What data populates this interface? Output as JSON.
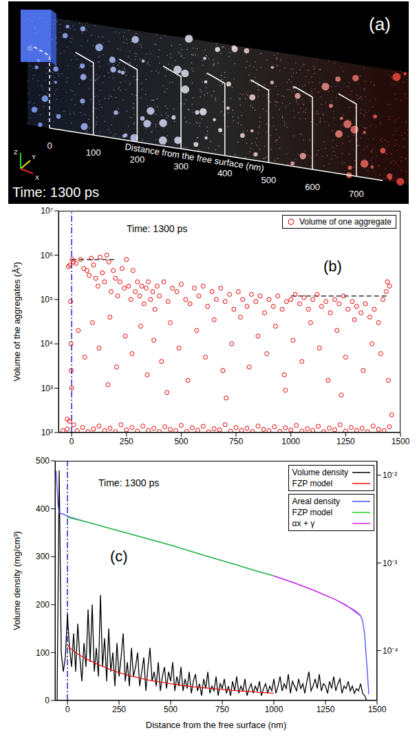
{
  "panel_a": {
    "panel_label": "(a)",
    "annotation": "Time: 1300 ps",
    "xlabel": "Distance from the free surface (nm)",
    "xlim": [
      0,
      760
    ],
    "xticks": [
      0,
      100,
      200,
      300,
      400,
      500,
      600,
      700
    ],
    "axis_triad": {
      "x": "X",
      "y": "Y",
      "z": "Z"
    }
  },
  "chart_data": [
    {
      "type": "scatter",
      "panel_label": "(b)",
      "annotation": "Time: 1300 ps",
      "ylabel": "Volume of the aggregates (Å³)",
      "xlim": [
        -60,
        1500
      ],
      "xticks": [
        0,
        250,
        500,
        750,
        1000,
        1250,
        1500
      ],
      "ylim": [
        100,
        10000000
      ],
      "yticks": [
        {
          "value": 100,
          "label": "10²"
        },
        {
          "value": 1000,
          "label": "10³"
        },
        {
          "value": 10000,
          "label": "10⁴"
        },
        {
          "value": 100000,
          "label": "10⁵"
        },
        {
          "value": 1000000,
          "label": "10⁶"
        },
        {
          "value": 10000000,
          "label": "10⁷"
        }
      ],
      "log": "y",
      "legend": "top-right",
      "series": [
        {
          "name": "Volume of one aggregate",
          "color": "#e60000",
          "marker": "open-circle",
          "x": [
            -15,
            -8,
            2,
            8,
            -5,
            -3,
            -2,
            0,
            20,
            40,
            55,
            70,
            80,
            90,
            100,
            110,
            120,
            130,
            140,
            150,
            160,
            170,
            180,
            190,
            200,
            210,
            220,
            230,
            240,
            250,
            260,
            270,
            280,
            290,
            300,
            310,
            320,
            330,
            340,
            350,
            360,
            370,
            380,
            390,
            400,
            420,
            440,
            460,
            480,
            500,
            520,
            540,
            560,
            580,
            600,
            620,
            640,
            660,
            680,
            700,
            720,
            740,
            760,
            780,
            800,
            820,
            840,
            860,
            880,
            900,
            920,
            940,
            960,
            980,
            1000,
            1020,
            1040,
            1060,
            1080,
            1100,
            1120,
            1140,
            1160,
            1180,
            1200,
            1220,
            1240,
            1260,
            1280,
            1300,
            1320,
            1340,
            1360,
            1380,
            1400,
            1420,
            1440,
            1450,
            1435,
            30,
            60,
            95,
            125,
            175,
            205,
            245,
            275,
            315,
            345,
            375,
            410,
            450,
            490,
            530,
            570,
            610,
            650,
            690,
            730,
            770,
            810,
            850,
            890,
            930,
            970,
            1010,
            1050,
            1090,
            1130,
            1170,
            1210,
            1250,
            1290,
            1330,
            1370,
            1410,
            1445,
            165,
            435,
            705,
            975,
            1230,
            -20,
            -40,
            -20,
            -10,
            10,
            25,
            50,
            75,
            100,
            125,
            150,
            175,
            200,
            225,
            250,
            275,
            300,
            325,
            350,
            375,
            400,
            425,
            450,
            475,
            500,
            525,
            550,
            575,
            600,
            625,
            650,
            675,
            700,
            725,
            750,
            775,
            800,
            825,
            850,
            875,
            900,
            925,
            950,
            975,
            1000,
            1025,
            1050,
            1075,
            1100,
            1125,
            1150,
            1175,
            1200,
            1225,
            1250,
            1275,
            1300,
            1325,
            1350,
            1375,
            1400,
            1425,
            1450,
            1460
          ],
          "values": [
            550000,
            600000,
            800000,
            700000,
            90000,
            10000,
            2500,
            1000,
            650000,
            800000,
            500000,
            450000,
            350000,
            850000,
            600000,
            300000,
            200000,
            900000,
            400000,
            250000,
            1000000,
            700000,
            150000,
            450000,
            300000,
            120000,
            250000,
            500000,
            180000,
            800000,
            200000,
            100000,
            450000,
            150000,
            250000,
            120000,
            200000,
            80000,
            180000,
            250000,
            100000,
            150000,
            60000,
            200000,
            120000,
            250000,
            90000,
            180000,
            150000,
            220000,
            100000,
            80000,
            180000,
            120000,
            200000,
            70000,
            150000,
            100000,
            180000,
            90000,
            130000,
            60000,
            150000,
            100000,
            70000,
            130000,
            90000,
            120000,
            50000,
            100000,
            70000,
            120000,
            60000,
            90000,
            100000,
            130000,
            80000,
            110000,
            60000,
            100000,
            130000,
            70000,
            90000,
            50000,
            100000,
            80000,
            120000,
            60000,
            90000,
            70000,
            50000,
            80000,
            40000,
            60000,
            30000,
            100000,
            250000,
            200000,
            150000,
            20000,
            5000,
            30000,
            8000,
            40000,
            3000,
            15000,
            6000,
            25000,
            2000,
            12000,
            4000,
            30000,
            8000,
            1500,
            20000,
            5000,
            35000,
            2500,
            10000,
            40000,
            3000,
            15000,
            6000,
            25000,
            2000,
            12000,
            4000,
            30000,
            8000,
            1500,
            20000,
            5000,
            35000,
            2500,
            10000,
            6000,
            1500,
            1200,
            800,
            600,
            900,
            700,
            200,
            110,
            120,
            180,
            150,
            110,
            130,
            105,
            120,
            140,
            110,
            125,
            105,
            150,
            115,
            130,
            108,
            140,
            112,
            125,
            105,
            135,
            118,
            110,
            145,
            106,
            128,
            112,
            138,
            104,
            122,
            115,
            150,
            108,
            130,
            112,
            125,
            105,
            140,
            118,
            110,
            135,
            106,
            128,
            115,
            145,
            108,
            122,
            112,
            138,
            104,
            126,
            116,
            150,
            108,
            130,
            112,
            125,
            105,
            140,
            118,
            110,
            135,
            250
          ]
        }
      ],
      "reference_lines": [
        {
          "x": 0,
          "color": "#0000cc",
          "line_style": "dash-dot"
        },
        {
          "y": 800000,
          "x": [
            0,
            200
          ],
          "color": "#333333",
          "line_style": "dashed"
        },
        {
          "y": 120000,
          "x": [
            1000,
            1450
          ],
          "color": "#333333",
          "line_style": "dashed"
        }
      ]
    },
    {
      "type": "line",
      "panel_label": "(c)",
      "annotation": "Time: 1300 ps",
      "xlabel": "Distance from the free surface (nm)",
      "ylabel": "Volume density (mg/cm³)",
      "xlim": [
        -60,
        1500
      ],
      "xticks": [
        0,
        250,
        500,
        750,
        1000,
        1250,
        1500
      ],
      "ylim": [
        0,
        500
      ],
      "yticks": [
        0,
        100,
        200,
        300,
        400,
        500
      ],
      "y2lim": [
        2.7e-05,
        0.0146
      ],
      "y2ticks": [
        {
          "value": 0.0001,
          "label": "10⁻⁴"
        },
        {
          "value": 0.001,
          "label": "10⁻³"
        },
        {
          "value": 0.01,
          "label": "10⁻²"
        }
      ],
      "log": "y2",
      "legend": "top-right",
      "series": [
        {
          "name": "Volume density",
          "color": "#000000",
          "line_style": "solid",
          "x": [
            -50,
            -40,
            -30,
            -20,
            -10,
            0,
            10,
            20,
            30,
            40,
            50,
            60,
            70,
            80,
            90,
            100,
            110,
            120,
            130,
            140,
            150,
            160,
            170,
            180,
            190,
            200,
            210,
            220,
            230,
            240,
            250,
            260,
            270,
            280,
            290,
            300,
            310,
            320,
            330,
            340,
            350,
            360,
            370,
            380,
            390,
            400,
            410,
            420,
            430,
            440,
            450,
            460,
            470,
            480,
            490,
            500,
            510,
            520,
            530,
            540,
            550,
            560,
            570,
            580,
            590,
            600,
            610,
            620,
            630,
            640,
            650,
            660,
            670,
            680,
            690,
            700,
            710,
            720,
            730,
            740,
            750,
            760,
            770,
            780,
            790,
            800,
            810,
            820,
            830,
            840,
            850,
            860,
            870,
            880,
            890,
            900,
            910,
            920,
            930,
            940,
            950,
            960,
            970,
            980,
            990,
            1000,
            1010,
            1020,
            1030,
            1040,
            1050,
            1060,
            1070,
            1080,
            1090,
            1100,
            1110,
            1120,
            1130,
            1140,
            1150,
            1160,
            1170,
            1180,
            1190,
            1200,
            1210,
            1220,
            1230,
            1240,
            1250,
            1260,
            1270,
            1280,
            1290,
            1300,
            1310,
            1320,
            1330,
            1340,
            1350,
            1360,
            1370,
            1380,
            1390,
            1400,
            1410,
            1420,
            1430,
            1440,
            1450
          ],
          "values": [
            0,
            480,
            100,
            60,
            90,
            180,
            110,
            70,
            140,
            60,
            160,
            90,
            40,
            120,
            70,
            190,
            80,
            200,
            60,
            110,
            50,
            220,
            70,
            130,
            40,
            150,
            60,
            100,
            30,
            120,
            50,
            90,
            140,
            40,
            80,
            30,
            110,
            50,
            70,
            100,
            30,
            60,
            90,
            20,
            70,
            110,
            40,
            60,
            30,
            80,
            20,
            50,
            70,
            25,
            60,
            40,
            80,
            20,
            50,
            30,
            70,
            20,
            45,
            25,
            60,
            15,
            40,
            55,
            20,
            35,
            10,
            45,
            25,
            60,
            15,
            30,
            20,
            50,
            10,
            35,
            25,
            45,
            15,
            30,
            10,
            40,
            20,
            50,
            15,
            30,
            20,
            45,
            10,
            25,
            35,
            15,
            30,
            20,
            40,
            10,
            25,
            35,
            15,
            30,
            20,
            45,
            15,
            30,
            50,
            20,
            35,
            25,
            55,
            15,
            40,
            30,
            20,
            45,
            25,
            35,
            15,
            40,
            60,
            20,
            30,
            45,
            25,
            55,
            20,
            35,
            30,
            15,
            40,
            25,
            50,
            20,
            35,
            45,
            15,
            30,
            25,
            40,
            20,
            30,
            15,
            25,
            20,
            35,
            15,
            10,
            0
          ]
        },
        {
          "name": "FZP model",
          "color": "#ee1111",
          "line_style": "solid",
          "x": [
            0,
            25,
            50,
            100,
            150,
            200,
            250,
            300,
            400,
            500,
            600,
            700,
            800,
            900,
            1000
          ],
          "values": [
            115,
            105,
            97,
            85,
            75,
            66,
            58,
            52,
            42,
            35,
            29,
            25,
            21,
            18,
            15
          ]
        },
        {
          "name": "Areal density",
          "color": "#4a4aff",
          "line_style": "solid",
          "axis": "y2",
          "x": [
            -55,
            -50,
            -45,
            -40,
            -20,
            0,
            100,
            200,
            300,
            400,
            500,
            600,
            700,
            800,
            900,
            1000,
            1100,
            1200,
            1300,
            1350,
            1400,
            1420,
            1430,
            1440,
            1450,
            1460
          ],
          "values": [
            0.0113,
            0.007,
            0.0045,
            0.0037,
            0.0036,
            0.0034,
            0.0029,
            0.0025,
            0.00215,
            0.00185,
            0.0016,
            0.00135,
            0.00115,
            0.00098,
            0.00083,
            0.00071,
            0.00059,
            0.00048,
            0.00038,
            0.00033,
            0.00027,
            0.00025,
            0.00022,
            0.00015,
            7e-05,
            3.2e-05
          ]
        },
        {
          "name": "FZP model",
          "color": "#22cc22",
          "line_style": "solid",
          "axis": "y2",
          "x": [
            0,
            100,
            200,
            300,
            400,
            500,
            600,
            700,
            800,
            900,
            1000
          ],
          "values": [
            0.0033,
            0.0029,
            0.0025,
            0.00215,
            0.00185,
            0.0016,
            0.00135,
            0.00115,
            0.00098,
            0.00083,
            0.00071
          ]
        },
        {
          "name": "αx + γ",
          "color": "#dd22dd",
          "line_style": "solid",
          "axis": "y2",
          "x": [
            1000,
            1100,
            1200,
            1300,
            1400,
            1420
          ],
          "values": [
            0.00071,
            0.00059,
            0.00048,
            0.00038,
            0.00028,
            0.00025
          ]
        }
      ],
      "reference_lines": [
        {
          "x": 0,
          "color": "#0000cc",
          "line_style": "dash-dot"
        }
      ]
    }
  ]
}
